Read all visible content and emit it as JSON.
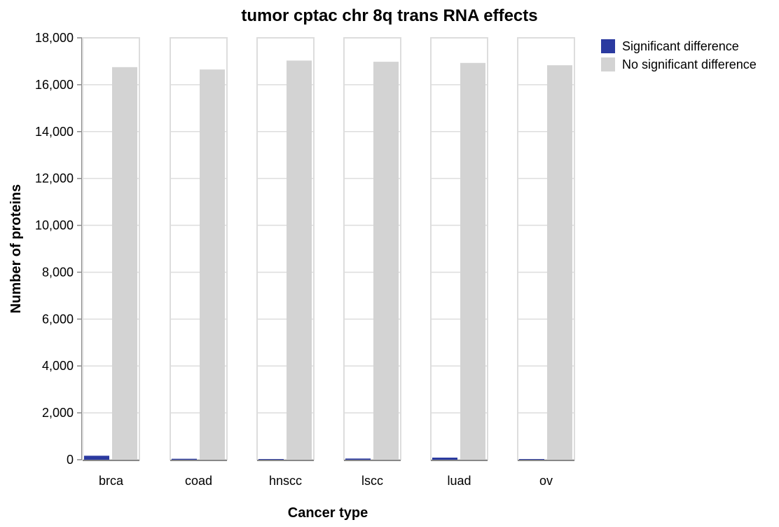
{
  "chart_data": {
    "type": "bar",
    "title": "tumor cptac chr 8q trans RNA effects",
    "xlabel": "Cancer type",
    "ylabel": "Number of proteins",
    "categories": [
      "brca",
      "coad",
      "hnscc",
      "lscc",
      "luad",
      "ov"
    ],
    "series": [
      {
        "name": "Significant difference",
        "color": "#2b3aa0",
        "values": [
          170,
          40,
          15,
          50,
          90,
          10
        ]
      },
      {
        "name": "No significant difference",
        "color": "#d3d3d3",
        "values": [
          16750,
          16650,
          17030,
          16980,
          16930,
          16830
        ]
      }
    ],
    "ylim": [
      0,
      18000
    ],
    "yticks": [
      0,
      2000,
      4000,
      6000,
      8000,
      10000,
      12000,
      14000,
      16000,
      18000
    ],
    "ytick_labels": [
      "0",
      "2,000",
      "4,000",
      "6,000",
      "8,000",
      "10,000",
      "12,000",
      "14,000",
      "16,000",
      "18,000"
    ],
    "grid": true,
    "legend_position": "top-right",
    "layout": "faceted"
  }
}
